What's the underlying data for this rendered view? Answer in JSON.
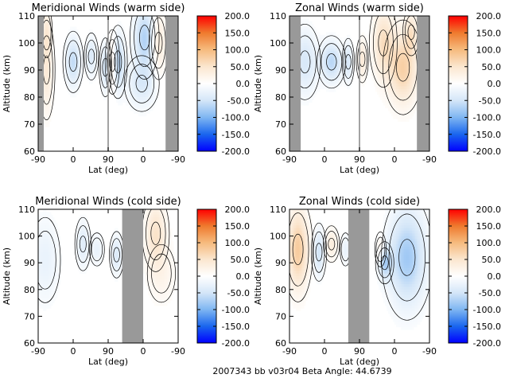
{
  "footer": "2007343 bb v03r04   Beta Angle: 44.6739",
  "colors": {
    "scale": [
      "#0000ff",
      "#1a66ee",
      "#7fb6f2",
      "#d4e6f8",
      "#ffffff",
      "#fbe6cf",
      "#f6bb7e",
      "#ef7a2e",
      "#ff0000"
    ],
    "gap": "#999999",
    "line": "#000000"
  },
  "chart_data": [
    {
      "type": "heatmap",
      "title": "Meridional Winds (warm side)",
      "xlabel": "Lat (deg)",
      "ylabel": "Altitude (km)",
      "x_ticks": [
        "-90",
        "0",
        "90",
        "0",
        "-90"
      ],
      "y_ticks": [
        "60",
        "70",
        "80",
        "90",
        "100",
        "110"
      ],
      "ylim": [
        60,
        110
      ],
      "colorbar_ticks": [
        "200.0",
        "150.0",
        "100.0",
        "50.0",
        "0.0",
        "-50.0",
        "-100.0",
        "-150.0",
        "-200.0"
      ],
      "zlim": [
        -200,
        200
      ],
      "features": [
        {
          "u": 0.06,
          "alt": 90,
          "su": 0.03,
          "sa": 11,
          "v": 40
        },
        {
          "u": 0.06,
          "alt": 104,
          "su": 0.02,
          "sa": 6,
          "v": 30
        },
        {
          "u": 0.25,
          "alt": 93,
          "su": 0.035,
          "sa": 6,
          "v": -60
        },
        {
          "u": 0.38,
          "alt": 95,
          "su": 0.025,
          "sa": 5,
          "v": -40
        },
        {
          "u": 0.48,
          "alt": 91,
          "su": 0.02,
          "sa": 6,
          "v": -50
        },
        {
          "u": 0.53,
          "alt": 93,
          "su": 0.025,
          "sa": 7,
          "v": 40
        },
        {
          "u": 0.57,
          "alt": 93,
          "su": 0.03,
          "sa": 7,
          "v": -70
        },
        {
          "u": 0.76,
          "alt": 102,
          "su": 0.05,
          "sa": 8,
          "v": -70
        },
        {
          "u": 0.74,
          "alt": 85,
          "su": 0.07,
          "sa": 6,
          "v": -40
        },
        {
          "u": 0.86,
          "alt": 100,
          "su": 0.035,
          "sa": 8,
          "v": 40
        }
      ],
      "gaps": [
        [
          0.0,
          0.04
        ],
        [
          0.495,
          0.505
        ],
        [
          0.91,
          1.0
        ]
      ]
    },
    {
      "type": "heatmap",
      "title": "Zonal Winds (warm side)",
      "xlabel": "Lat (deg)",
      "ylabel": "Altitude (km)",
      "x_ticks": [
        "-90",
        "0",
        "90",
        "0",
        "-90"
      ],
      "y_ticks": [
        "60",
        "70",
        "80",
        "90",
        "100",
        "110"
      ],
      "ylim": [
        60,
        110
      ],
      "colorbar_ticks": [
        "200.0",
        "150.0",
        "100.0",
        "50.0",
        "0.0",
        "-50.0",
        "-100.0",
        "-150.0",
        "-200.0"
      ],
      "zlim": [
        -200,
        200
      ],
      "features": [
        {
          "u": 0.11,
          "alt": 93,
          "su": 0.06,
          "sa": 8,
          "v": -45
        },
        {
          "u": 0.3,
          "alt": 93,
          "su": 0.05,
          "sa": 5,
          "v": -65
        },
        {
          "u": 0.42,
          "alt": 93,
          "su": 0.02,
          "sa": 5,
          "v": -40
        },
        {
          "u": 0.52,
          "alt": 94,
          "su": 0.02,
          "sa": 5,
          "v": 40
        },
        {
          "u": 0.67,
          "alt": 100,
          "su": 0.05,
          "sa": 9,
          "v": 55
        },
        {
          "u": 0.81,
          "alt": 91,
          "su": 0.07,
          "sa": 9,
          "v": 75
        },
        {
          "u": 0.87,
          "alt": 104,
          "su": 0.03,
          "sa": 5,
          "v": 40
        }
      ],
      "gaps": [
        [
          0.0,
          0.08
        ],
        [
          0.495,
          0.505
        ],
        [
          0.91,
          1.0
        ]
      ]
    },
    {
      "type": "heatmap",
      "title": "Meridional Winds (cold side)",
      "xlabel": "Lat (deg)",
      "ylabel": "Altitude (km)",
      "x_ticks": [
        "-90",
        "0",
        "90",
        "0",
        "-90"
      ],
      "y_ticks": [
        "60",
        "70",
        "80",
        "90",
        "100",
        "110"
      ],
      "ylim": [
        60,
        110
      ],
      "colorbar_ticks": [
        "200.0",
        "150.0",
        "100.0",
        "50.0",
        "0.0",
        "-50.0",
        "-100.0",
        "-150.0",
        "-200.0"
      ],
      "zlim": [
        -200,
        200
      ],
      "features": [
        {
          "u": 0.05,
          "alt": 91,
          "su": 0.07,
          "sa": 11,
          "v": -25
        },
        {
          "u": 0.32,
          "alt": 97,
          "su": 0.03,
          "sa": 6,
          "v": -35
        },
        {
          "u": 0.42,
          "alt": 95,
          "su": 0.03,
          "sa": 4,
          "v": -25
        },
        {
          "u": 0.56,
          "alt": 93,
          "su": 0.025,
          "sa": 5,
          "v": -40
        },
        {
          "u": 0.84,
          "alt": 101,
          "su": 0.05,
          "sa": 8,
          "v": 50
        },
        {
          "u": 0.88,
          "alt": 86,
          "su": 0.07,
          "sa": 8,
          "v": 20
        }
      ],
      "gaps": [
        [
          0.6,
          0.75
        ]
      ]
    },
    {
      "type": "heatmap",
      "title": "Zonal Winds (cold side)",
      "xlabel": "Lat (deg)",
      "ylabel": "Altitude (km)",
      "x_ticks": [
        "-90",
        "0",
        "90",
        "0",
        "-90"
      ],
      "y_ticks": [
        "60",
        "70",
        "80",
        "90",
        "100",
        "110"
      ],
      "ylim": [
        60,
        110
      ],
      "colorbar_ticks": [
        "200.0",
        "150.0",
        "100.0",
        "50.0",
        "0.0",
        "-50.0",
        "-100.0",
        "-150.0",
        "-200.0"
      ],
      "zlim": [
        -200,
        200
      ],
      "features": [
        {
          "u": 0.06,
          "alt": 95,
          "su": 0.05,
          "sa": 10,
          "v": 80
        },
        {
          "u": 0.21,
          "alt": 94,
          "su": 0.025,
          "sa": 6,
          "v": -50
        },
        {
          "u": 0.3,
          "alt": 97,
          "su": 0.03,
          "sa": 4,
          "v": 35
        },
        {
          "u": 0.4,
          "alt": 95,
          "su": 0.02,
          "sa": 4,
          "v": -25
        },
        {
          "u": 0.65,
          "alt": 95,
          "su": 0.02,
          "sa": 4,
          "v": 30
        },
        {
          "u": 0.68,
          "alt": 90,
          "su": 0.03,
          "sa": 4,
          "v": -65
        },
        {
          "u": 0.84,
          "alt": 92,
          "su": 0.09,
          "sa": 12,
          "v": -80
        }
      ],
      "gaps": [
        [
          0.42,
          0.57
        ]
      ]
    }
  ]
}
